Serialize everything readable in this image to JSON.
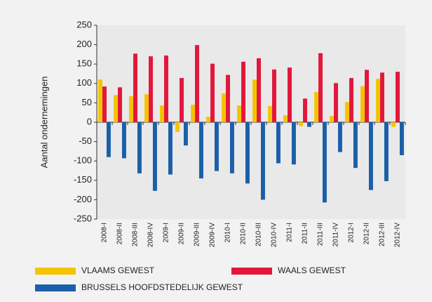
{
  "chart_data": {
    "type": "bar",
    "y_label": "Aantal ondernemingen",
    "categories": [
      "2008-I",
      "2008-II",
      "2008-III",
      "2008-IV",
      "2009-I",
      "2009-II",
      "2009-III",
      "2009-IV",
      "2010-I",
      "2010-II",
      "2010-III",
      "2010-IV",
      "2011-I",
      "2011-II",
      "2011-III",
      "2011-IV",
      "2012-I",
      "2012-II",
      "2012-III",
      "2012-IV"
    ],
    "series": [
      {
        "name": "VLAAMS GEWEST",
        "color": "#f5c400",
        "values": [
          110,
          70,
          67,
          72,
          43,
          -25,
          45,
          14,
          74,
          43,
          110,
          42,
          18,
          -10,
          78,
          16,
          52,
          93,
          112,
          -12
        ]
      },
      {
        "name": "WAALS GEWEST",
        "color": "#e2173b",
        "values": [
          92,
          90,
          177,
          170,
          172,
          114,
          199,
          151,
          122,
          156,
          165,
          136,
          141,
          61,
          178,
          101,
          114,
          135,
          128,
          130
        ]
      },
      {
        "name": "BRUSSELS HOOFDSTEDELIJK GEWEST",
        "color": "#1b5fa8",
        "values": [
          -90,
          -93,
          -132,
          -177,
          -135,
          -60,
          -145,
          -126,
          -132,
          -158,
          -200,
          -106,
          -109,
          -12,
          -207,
          -77,
          -118,
          -175,
          -152,
          -85
        ]
      }
    ],
    "ylim": [
      -250,
      250
    ],
    "yticks": [
      -250,
      -200,
      -150,
      -100,
      -50,
      0,
      50,
      100,
      150,
      200,
      250
    ],
    "grid": false
  }
}
